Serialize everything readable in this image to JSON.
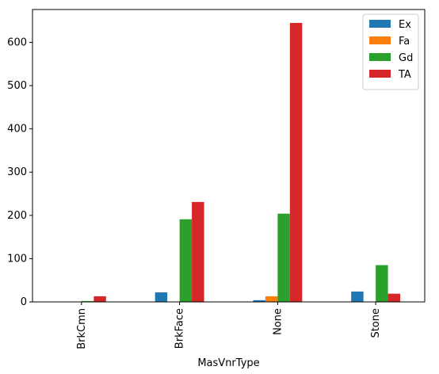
{
  "chart_data": {
    "type": "bar",
    "xlabel": "MasVnrType",
    "ylabel": "",
    "categories": [
      "BrkCmn",
      "BrkFace",
      "None",
      "Stone"
    ],
    "series": [
      {
        "name": "Ex",
        "color": "#1f77b4",
        "values": [
          0,
          22,
          4,
          24
        ]
      },
      {
        "name": "Fa",
        "color": "#ff7f0e",
        "values": [
          0,
          0,
          13,
          0
        ]
      },
      {
        "name": "Gd",
        "color": "#2ca02c",
        "values": [
          2,
          191,
          204,
          85
        ]
      },
      {
        "name": "TA",
        "color": "#d62728",
        "values": [
          13,
          231,
          645,
          19
        ]
      }
    ],
    "ylim": [
      0,
      676
    ],
    "yticks": [
      0,
      100,
      200,
      300,
      400,
      500,
      600
    ],
    "legend": {
      "position": "top-right"
    },
    "grid": false
  }
}
